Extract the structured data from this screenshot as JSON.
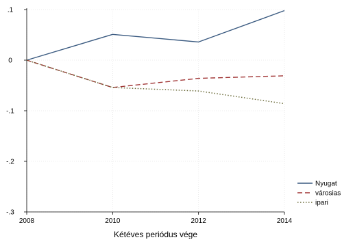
{
  "chart_data": {
    "type": "line",
    "title": "",
    "xlabel": "Kétéves periódus vége",
    "ylabel": "",
    "x": [
      2008,
      2010,
      2012,
      2014
    ],
    "x_ticks": [
      2008,
      2010,
      2012,
      2014
    ],
    "y_ticks": [
      -0.3,
      -0.2,
      -0.1,
      0,
      0.1
    ],
    "y_tick_labels": [
      "-.3",
      "-.2",
      "-.1",
      "0",
      ".1"
    ],
    "xlim": [
      2008,
      2014
    ],
    "ylim": [
      -0.3,
      0.1
    ],
    "grid": true,
    "legend_position": "bottom-right",
    "series": [
      {
        "name": "Nyugat",
        "values": [
          0.0,
          0.051,
          0.036,
          0.098
        ],
        "color": "#3a5a80",
        "style": "solid"
      },
      {
        "name": "városias",
        "values": [
          0.0,
          -0.054,
          -0.036,
          -0.031
        ],
        "color": "#a03434",
        "style": "dashed"
      },
      {
        "name": "ipari",
        "values": [
          0.0,
          -0.054,
          -0.061,
          -0.086
        ],
        "color": "#6b6b3a",
        "style": "dotted"
      }
    ]
  }
}
